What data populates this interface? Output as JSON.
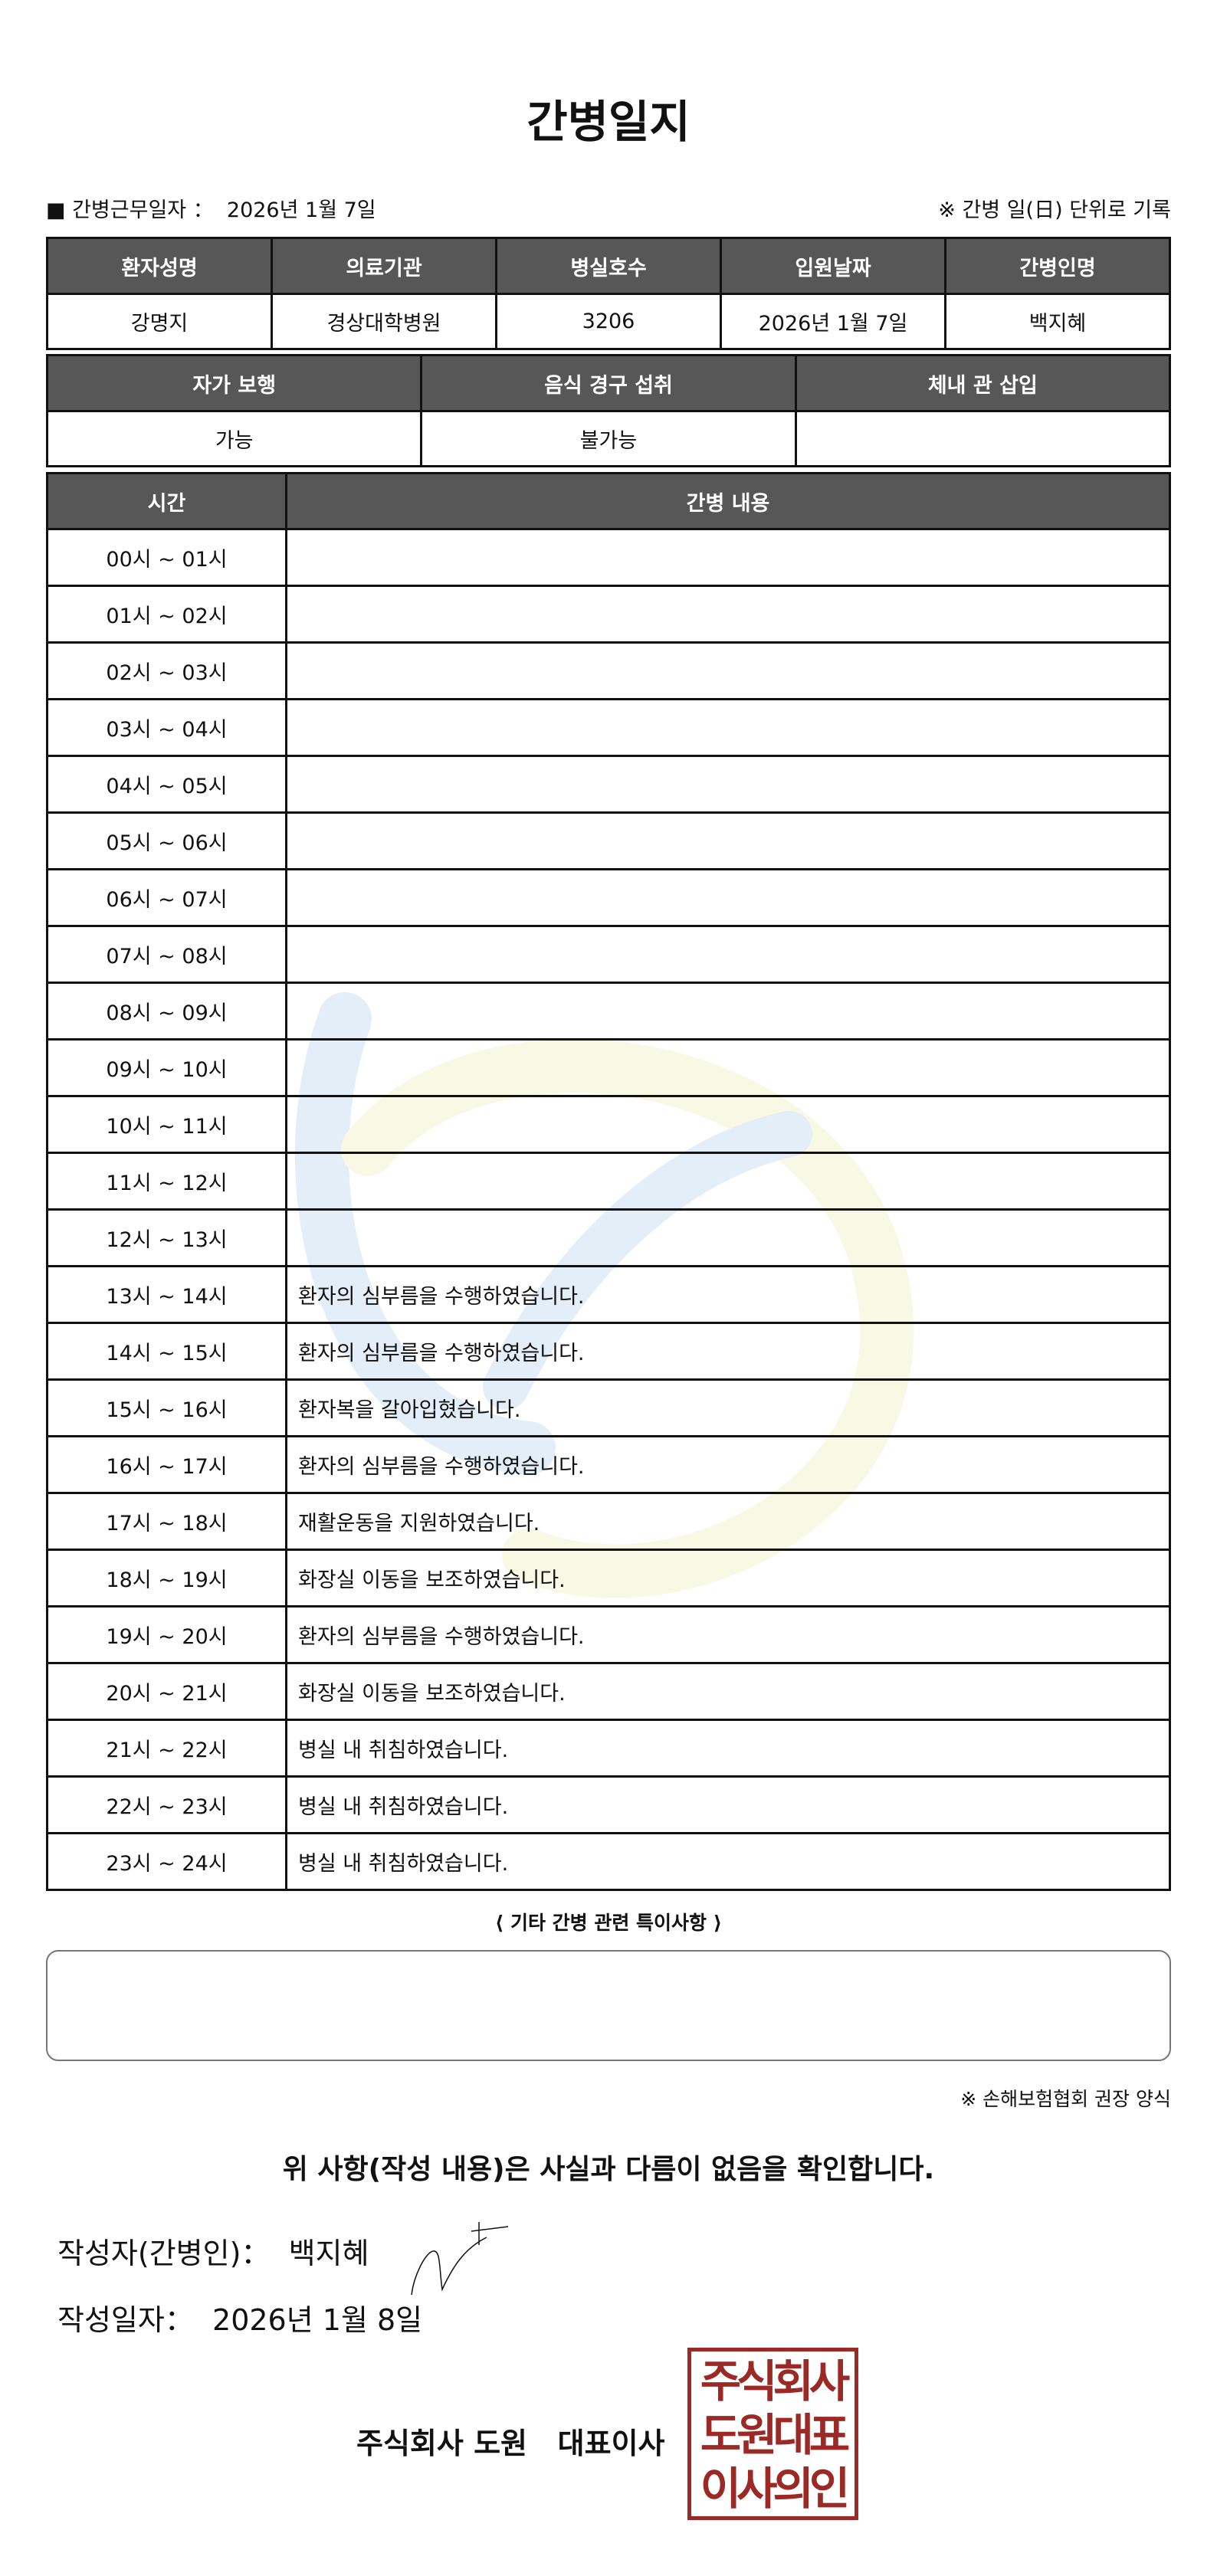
{
  "title": "간병일지",
  "info": {
    "duty_date_label": "■ 간병근무일자 ：",
    "duty_date": "2026년 1월 7일",
    "rule_note": "※ 간병 일(日) 단위로 기록"
  },
  "patient_table": {
    "headers": [
      "환자성명",
      "의료기관",
      "병실호수",
      "입원날짜",
      "간병인명"
    ],
    "values": [
      "강명지",
      "경상대학병원",
      "3206",
      "2026년 1월 7일",
      "백지혜"
    ]
  },
  "status_table": {
    "headers": [
      "자가 보행",
      "음식 경구 섭취",
      "체내 관 삽입"
    ],
    "values": [
      "가능",
      "불가능",
      ""
    ]
  },
  "log_table": {
    "headers": [
      "시간",
      "간병 내용"
    ],
    "rows": [
      {
        "time": "00시 ~ 01시",
        "content": ""
      },
      {
        "time": "01시 ~ 02시",
        "content": ""
      },
      {
        "time": "02시 ~ 03시",
        "content": ""
      },
      {
        "time": "03시 ~ 04시",
        "content": ""
      },
      {
        "time": "04시 ~ 05시",
        "content": ""
      },
      {
        "time": "05시 ~ 06시",
        "content": ""
      },
      {
        "time": "06시 ~ 07시",
        "content": ""
      },
      {
        "time": "07시 ~ 08시",
        "content": ""
      },
      {
        "time": "08시 ~ 09시",
        "content": ""
      },
      {
        "time": "09시 ~ 10시",
        "content": ""
      },
      {
        "time": "10시 ~ 11시",
        "content": ""
      },
      {
        "time": "11시 ~ 12시",
        "content": ""
      },
      {
        "time": "12시 ~ 13시",
        "content": ""
      },
      {
        "time": "13시 ~ 14시",
        "content": "환자의 심부름을 수행하였습니다."
      },
      {
        "time": "14시 ~ 15시",
        "content": "환자의 심부름을 수행하였습니다."
      },
      {
        "time": "15시 ~ 16시",
        "content": "환자복을 갈아입혔습니다."
      },
      {
        "time": "16시 ~ 17시",
        "content": "환자의 심부름을 수행하였습니다."
      },
      {
        "time": "17시 ~ 18시",
        "content": "재활운동을 지원하였습니다."
      },
      {
        "time": "18시 ~ 19시",
        "content": "화장실 이동을 보조하였습니다."
      },
      {
        "time": "19시 ~ 20시",
        "content": "환자의 심부름을 수행하였습니다."
      },
      {
        "time": "20시 ~ 21시",
        "content": "화장실 이동을 보조하였습니다."
      },
      {
        "time": "21시 ~ 22시",
        "content": "병실 내 취침하였습니다."
      },
      {
        "time": "22시 ~ 23시",
        "content": "병실 내 취침하였습니다."
      },
      {
        "time": "23시 ~ 24시",
        "content": "병실 내 취침하였습니다."
      }
    ]
  },
  "special_notes": {
    "label": "⟨ 기타 간병 관련 특이사항 ⟩",
    "value": ""
  },
  "association_note": "※ 손해보험협회 권장 양식",
  "confirmation": "위 사항(작성 내용)은 사실과 다름이 없음을 확인합니다.",
  "writer": {
    "label": "작성자(간병인)：",
    "name": "백지혜"
  },
  "written_date": {
    "label": "작성일자：",
    "value": "2026년 1월 8일"
  },
  "company": "주식회사 도원   대표이사",
  "seal": {
    "text": "주식회사도원대표이사의인",
    "color": "#9b2a26"
  },
  "colors": {
    "header_bg": "#575757",
    "watermark_blue": "#dcebf7",
    "watermark_yellow": "#f7f8e0"
  }
}
